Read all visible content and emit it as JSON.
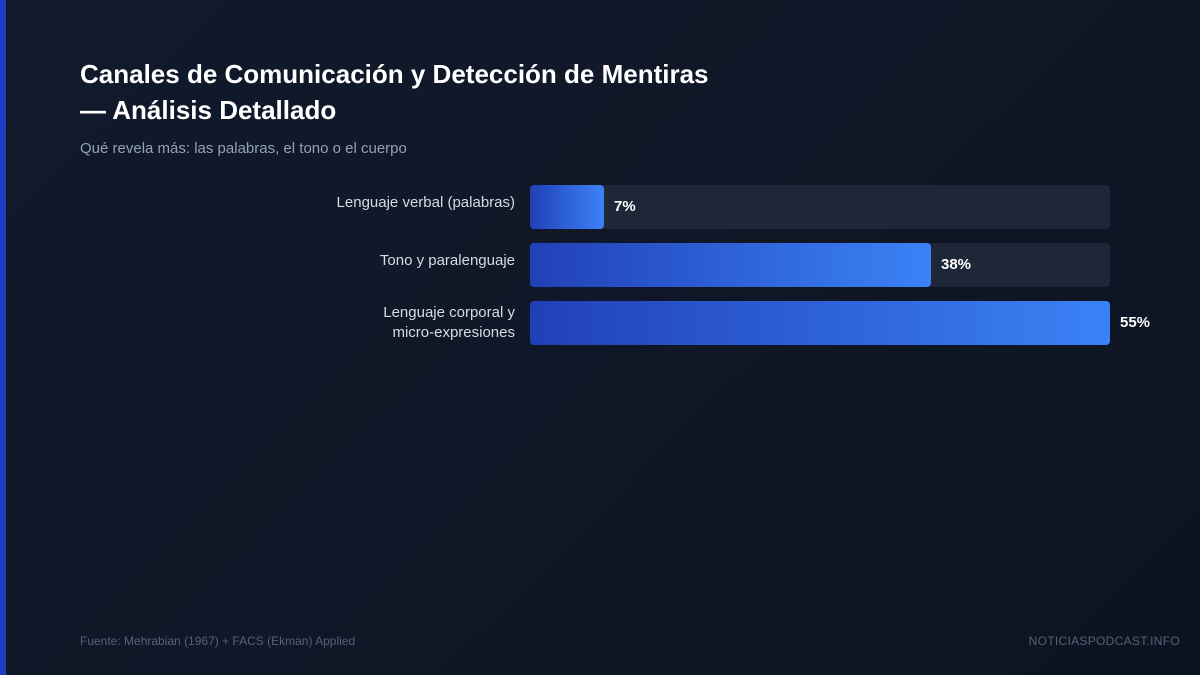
{
  "header": {
    "title": "Canales de Comunicación y Detección de Mentiras — Análisis Detallado",
    "subtitle": "Qué revela más: las palabras, el tono o el cuerpo"
  },
  "footer": {
    "source": "Fuente: Mehrabian (1967) + FACS (Ekman) Applied",
    "site": "NOTICIASPODCAST.INFO"
  },
  "colors": {
    "bar_start": "#2140b8",
    "bar_end": "#3b82f6",
    "track": "#1d2738",
    "accent": "#1d3fbf"
  },
  "chart_data": {
    "type": "bar",
    "orientation": "horizontal",
    "categories": [
      [
        "Lenguaje verbal (palabras)"
      ],
      [
        "Tono y paralenguaje"
      ],
      [
        "Lenguaje corporal y",
        "micro-expresiones"
      ]
    ],
    "values": [
      7,
      38,
      55
    ],
    "value_labels": [
      "7%",
      "38%",
      "55%"
    ],
    "xlim": [
      0,
      55
    ],
    "grid": false
  }
}
